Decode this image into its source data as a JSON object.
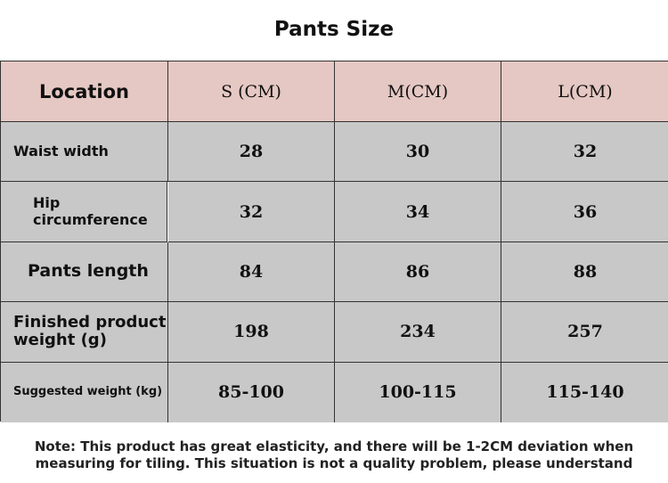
{
  "title": "Pants Size",
  "table": {
    "header": [
      "Location",
      "S (CM)",
      "M(CM)",
      "L(CM)"
    ],
    "rows": [
      [
        "Waist width",
        28,
        30,
        32
      ],
      [
        "Hip circumference",
        32,
        34,
        36
      ],
      [
        "Pants length",
        84,
        86,
        88
      ],
      [
        "Finished product weight (g)",
        198,
        234,
        257
      ],
      [
        "Suggested weight (kg)",
        "85-100",
        "100-115",
        "115-140"
      ]
    ]
  },
  "note": [
    "Note: This product has great elasticity, and there will be 1-2CM deviation when",
    "measuring for tiling. This situation is not a quality problem, please understand"
  ]
}
